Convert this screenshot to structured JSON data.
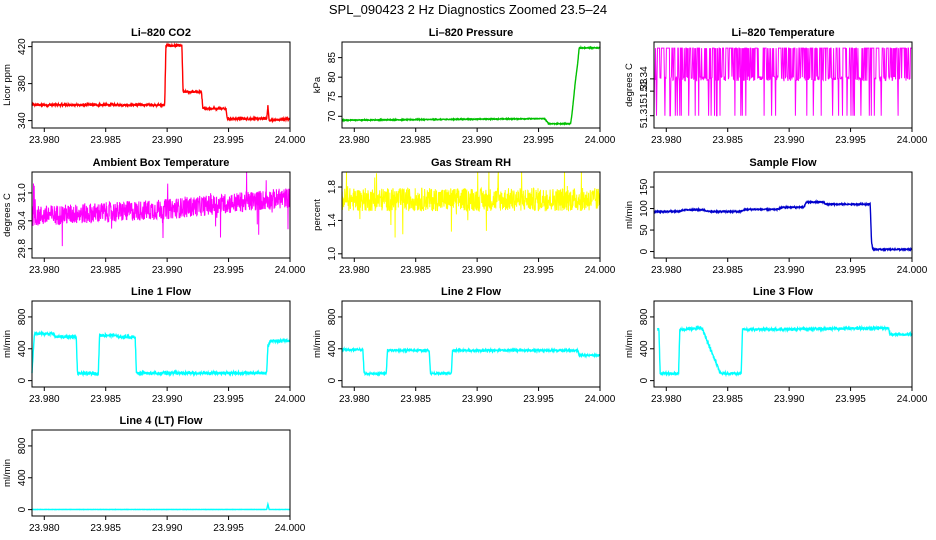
{
  "figure_title": "SPL_090423  2 Hz Diagnostics Zoomed 23.5–24",
  "chart_data": [
    {
      "type": "line",
      "title": "Li–820 CO2",
      "ylabel": "Licor ppm",
      "color": "#ff0000",
      "xlim": [
        23.979,
        24.0
      ],
      "ylim": [
        332,
        425
      ],
      "x_ticks": [
        "23.980",
        "23.985",
        "23.990",
        "23.995",
        "24.000"
      ],
      "y_ticks": [
        340,
        380,
        420
      ],
      "series": [
        {
          "x": [
            23.979,
            23.9898,
            23.9899,
            23.9912,
            23.9913,
            23.9928,
            23.9929,
            23.9948,
            23.9949,
            23.9981,
            23.9982,
            23.9983,
            24.0
          ],
          "y": [
            357,
            357,
            421,
            421,
            371,
            371,
            353,
            353,
            342,
            342,
            356,
            340,
            342
          ],
          "noise": 1.2
        }
      ]
    },
    {
      "type": "line",
      "title": "Li–820 Pressure",
      "ylabel": "kPa",
      "color": "#00c000",
      "xlim": [
        23.979,
        24.0
      ],
      "ylim": [
        67,
        89
      ],
      "x_ticks": [
        "23.980",
        "23.985",
        "23.990",
        "23.995",
        "24.000"
      ],
      "y_ticks": [
        70,
        75,
        80,
        85
      ],
      "series": [
        {
          "x": [
            23.979,
            23.9955,
            23.9958,
            23.9976,
            23.9977,
            23.998,
            23.9982,
            23.9983,
            24.0
          ],
          "y": [
            69,
            69.4,
            68.1,
            68.1,
            70,
            79,
            84,
            87.5,
            87.5
          ],
          "noise": 0.1
        }
      ]
    },
    {
      "type": "line",
      "title": "Li–820 Temperature",
      "ylabel": "degrees C",
      "color": "#ff00ff",
      "xlim": [
        23.979,
        24.0
      ],
      "ylim": [
        51.3,
        51.37
      ],
      "x_ticks": [
        "23.980",
        "23.985",
        "23.990",
        "23.995",
        "24.000"
      ],
      "y_ticks": [
        "51.31",
        "51.33",
        "51.34"
      ],
      "y_tick_values": [
        51.31,
        51.33,
        51.34
      ],
      "series": [
        {
          "x": [
            23.979,
            24.0
          ],
          "y": [
            51.337,
            51.337
          ],
          "noise": 0.012,
          "style": "band"
        }
      ]
    },
    {
      "type": "line",
      "title": "Ambient Box Temperature",
      "ylabel": "degrees C",
      "color": "#ff00ff",
      "xlim": [
        23.979,
        24.0
      ],
      "ylim": [
        29.6,
        31.45
      ],
      "x_ticks": [
        "23.980",
        "23.985",
        "23.990",
        "23.995",
        "24.000"
      ],
      "y_ticks": [
        "29.8",
        "30.4",
        "31.0"
      ],
      "y_tick_values": [
        29.8,
        30.4,
        31.0
      ],
      "series": [
        {
          "x": [
            23.979,
            23.99,
            24.0
          ],
          "y": [
            30.5,
            30.65,
            30.9
          ],
          "noise": 0.22,
          "style": "noisy"
        }
      ]
    },
    {
      "type": "line",
      "title": "Gas Stream RH",
      "ylabel": "percent",
      "color": "#ffff00",
      "xlim": [
        23.979,
        24.0
      ],
      "ylim": [
        0.95,
        1.98
      ],
      "x_ticks": [
        "23.980",
        "23.985",
        "23.990",
        "23.995",
        "24.000"
      ],
      "y_ticks": [
        "1.0",
        "1.4",
        "1.8"
      ],
      "y_tick_values": [
        1.0,
        1.4,
        1.8
      ],
      "series": [
        {
          "x": [
            23.979,
            24.0
          ],
          "y": [
            1.65,
            1.65
          ],
          "noise": 0.14,
          "style": "noisy"
        }
      ]
    },
    {
      "type": "line",
      "title": "Sample Flow",
      "ylabel": "ml/min",
      "color": "#0000cc",
      "xlim": [
        23.979,
        24.0
      ],
      "ylim": [
        -15,
        185
      ],
      "x_ticks": [
        "23.980",
        "23.985",
        "23.990",
        "23.995",
        "24.000"
      ],
      "y_ticks": [
        0,
        50,
        100,
        150
      ],
      "series": [
        {
          "x": [
            23.979,
            23.981,
            23.9815,
            23.983,
            23.9835,
            23.986,
            23.9865,
            23.989,
            23.9895,
            23.9912,
            23.9914,
            23.9928,
            23.993,
            23.9966,
            23.9967,
            23.9968,
            24.0
          ],
          "y": [
            93,
            93,
            97,
            97,
            93,
            93,
            98,
            98,
            103,
            103,
            115,
            115,
            110,
            110,
            25,
            5,
            5
          ],
          "noise": 1.3
        }
      ]
    },
    {
      "type": "line",
      "title": "Line 1 Flow",
      "ylabel": "ml/min",
      "color": "#00ffff",
      "xlim": [
        23.979,
        24.0
      ],
      "ylim": [
        -80,
        1000
      ],
      "x_ticks": [
        "23.980",
        "23.985",
        "23.990",
        "23.995",
        "24.000"
      ],
      "y_ticks": [
        0,
        400,
        800
      ],
      "series": [
        {
          "x": [
            23.979,
            23.9792,
            23.9808,
            23.9809,
            23.9826,
            23.9827,
            23.9844,
            23.9845,
            23.9858,
            23.9859,
            23.9874,
            23.9875,
            23.9981,
            23.9982,
            23.9984,
            24.0
          ],
          "y": [
            100,
            590,
            590,
            550,
            550,
            90,
            90,
            570,
            570,
            550,
            550,
            95,
            95,
            420,
            500,
            500
          ],
          "noise": 18
        }
      ]
    },
    {
      "type": "line",
      "title": "Line 2 Flow",
      "ylabel": "ml/min",
      "color": "#00ffff",
      "xlim": [
        23.979,
        24.0
      ],
      "ylim": [
        -80,
        1000
      ],
      "x_ticks": [
        "23.980",
        "23.985",
        "23.990",
        "23.995",
        "24.000"
      ],
      "y_ticks": [
        0,
        400,
        800
      ],
      "series": [
        {
          "x": [
            23.979,
            23.9807,
            23.9808,
            23.9826,
            23.9827,
            23.9861,
            23.9862,
            23.9879,
            23.988,
            23.9982,
            23.9983,
            24.0
          ],
          "y": [
            390,
            390,
            90,
            90,
            380,
            380,
            90,
            90,
            380,
            380,
            320,
            320
          ],
          "noise": 12
        }
      ]
    },
    {
      "type": "line",
      "title": "Line 3 Flow",
      "ylabel": "ml/min",
      "color": "#00ffff",
      "xlim": [
        23.979,
        24.0
      ],
      "ylim": [
        -80,
        1000
      ],
      "x_ticks": [
        "23.980",
        "23.985",
        "23.990",
        "23.995",
        "24.000"
      ],
      "y_ticks": [
        0,
        400,
        800
      ],
      "series": [
        {
          "x": [
            23.9793,
            23.9794,
            23.9795,
            23.981,
            23.9811,
            23.9828,
            23.9829,
            23.9844,
            23.9845,
            23.9861,
            23.9862,
            23.9981,
            23.9982,
            24.0
          ],
          "y": [
            650,
            640,
            90,
            90,
            640,
            660,
            660,
            90,
            90,
            90,
            640,
            660,
            580,
            580
          ],
          "noise": 16
        }
      ]
    },
    {
      "type": "line",
      "title": "Line 4 (LT) Flow",
      "ylabel": "ml/min",
      "color": "#00ffff",
      "xlim": [
        23.979,
        24.0
      ],
      "ylim": [
        -80,
        1000
      ],
      "x_ticks": [
        "23.980",
        "23.985",
        "23.990",
        "23.995",
        "24.000"
      ],
      "y_ticks": [
        0,
        400,
        800
      ],
      "series": [
        {
          "x": [
            23.979,
            23.9981,
            23.9982,
            23.9983,
            24.0
          ],
          "y": [
            2,
            2,
            70,
            2,
            2
          ],
          "noise": 1.5
        }
      ]
    }
  ]
}
